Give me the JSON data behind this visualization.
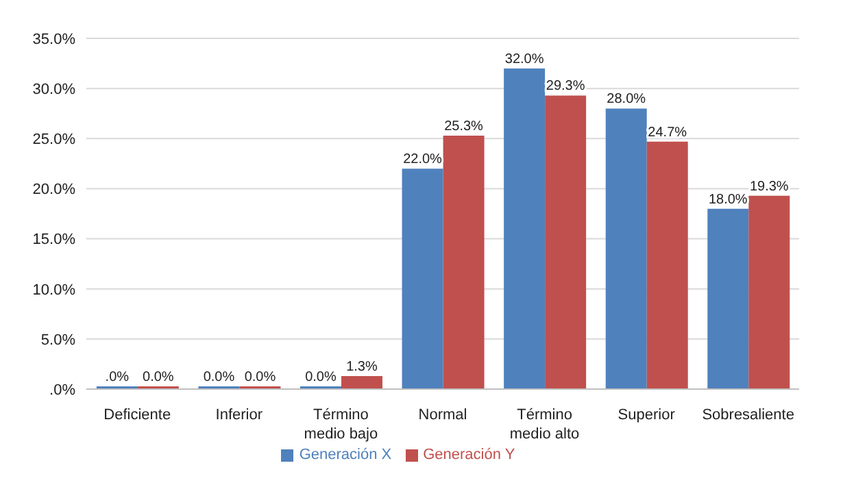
{
  "chart_data": {
    "type": "bar",
    "categories": [
      "Deficiente",
      "Inferior",
      "Término medio bajo",
      "Normal",
      "Término medio alto",
      "Superior",
      "Sobresaliente"
    ],
    "series": [
      {
        "name": "Generación X",
        "color": "#4f81bd",
        "values": [
          0,
          0,
          0,
          22,
          32,
          28,
          18
        ],
        "value_labels": [
          ".0%",
          "0.0%",
          "0.0%",
          "22.0%",
          "32.0%",
          "28.0%",
          "18.0%"
        ]
      },
      {
        "name": "Generación Y",
        "color": "#c0504d",
        "values": [
          0,
          0,
          1.3,
          25.3,
          29.3,
          24.7,
          19.3
        ],
        "value_labels": [
          "0.0%",
          "0.0%",
          "1.3%",
          "25.3%",
          "29.3%",
          "24.7%",
          "19.3%"
        ]
      }
    ],
    "ylim": [
      0,
      35
    ],
    "yticks": [
      {
        "value": 0,
        "label": ".0%"
      },
      {
        "value": 5,
        "label": "5.0%"
      },
      {
        "value": 10,
        "label": "10.0%"
      },
      {
        "value": 15,
        "label": "15.0%"
      },
      {
        "value": 20,
        "label": "20.0%"
      },
      {
        "value": 25,
        "label": "25.0%"
      },
      {
        "value": 30,
        "label": "30.0%"
      },
      {
        "value": 35,
        "label": "35.0%"
      }
    ],
    "grid": "y",
    "legend": "bottom"
  }
}
